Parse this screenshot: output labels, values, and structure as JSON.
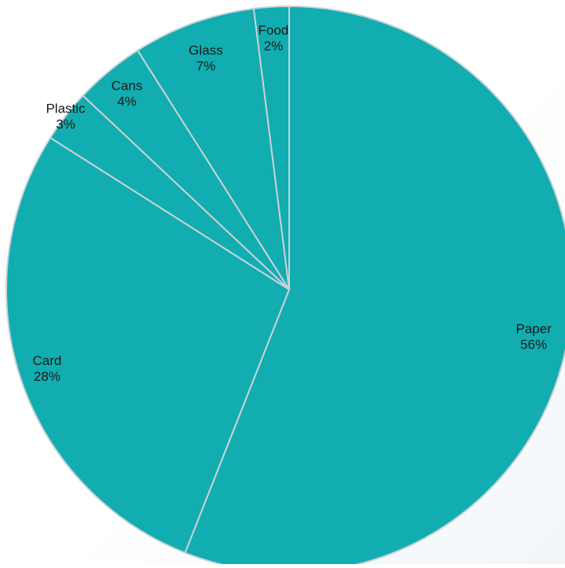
{
  "chart_data": {
    "type": "pie",
    "title": "",
    "start_angle_deg": 0,
    "direction": "clockwise",
    "slice_color": "#12adb0",
    "separator_color": "#c8d2d8",
    "slices": [
      {
        "name": "Paper",
        "label": "56%",
        "value": 56
      },
      {
        "name": "Card",
        "label": "28%",
        "value": 28
      },
      {
        "name": "Plastic",
        "label": "3%",
        "value": 3
      },
      {
        "name": "Cans",
        "label": "4%",
        "value": 4
      },
      {
        "name": "Glass",
        "label": "7%",
        "value": 7
      },
      {
        "name": "Food",
        "label": "2%",
        "value": 2
      }
    ]
  }
}
